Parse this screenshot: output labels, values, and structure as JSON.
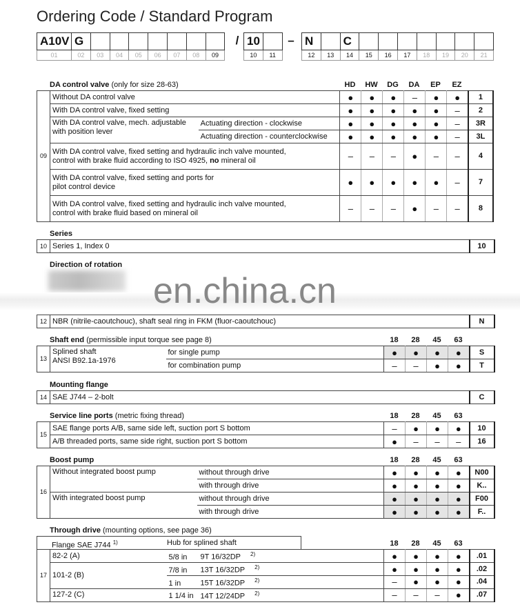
{
  "page_title": "Ordering Code / Standard Program",
  "code_strip": {
    "cells": [
      {
        "value": "A10V",
        "num": "01",
        "active": false
      },
      {
        "value": "G",
        "num": "02",
        "active": false
      },
      {
        "value": "",
        "num": "03",
        "active": false
      },
      {
        "value": "",
        "num": "04",
        "active": false
      },
      {
        "value": "",
        "num": "05",
        "active": false
      },
      {
        "value": "",
        "num": "06",
        "active": false
      },
      {
        "value": "",
        "num": "07",
        "active": false
      },
      {
        "value": "",
        "num": "08",
        "active": false
      },
      {
        "value": "",
        "num": "09",
        "active": true
      },
      {
        "value": "10",
        "num": "10",
        "active": true
      },
      {
        "value": "",
        "num": "11",
        "active": true
      },
      {
        "value": "N",
        "num": "12",
        "active": true
      },
      {
        "value": "",
        "num": "13",
        "active": true
      },
      {
        "value": "C",
        "num": "14",
        "active": true
      },
      {
        "value": "",
        "num": "15",
        "active": true
      },
      {
        "value": "",
        "num": "16",
        "active": true
      },
      {
        "value": "",
        "num": "17",
        "active": true
      },
      {
        "value": "",
        "num": "18",
        "active": false
      },
      {
        "value": "",
        "num": "19",
        "active": false
      },
      {
        "value": "",
        "num": "20",
        "active": false
      },
      {
        "value": "",
        "num": "21",
        "active": false
      }
    ],
    "separators": [
      "/",
      "–"
    ]
  },
  "marks": {
    "available": "●",
    "unavailable": "–"
  },
  "watermark": "en.china.cn",
  "sections": [
    {
      "id": "da",
      "title": "DA control valve",
      "note": "(only for size 28-63)",
      "number": "09",
      "columns": [
        "HD",
        "HW",
        "DG",
        "DA",
        "EP",
        "EZ"
      ],
      "groups": [
        {
          "desc": "Without DA control valve",
          "rows": [
            {
              "marks": [
                "●",
                "●",
                "●",
                "–",
                "●",
                "●"
              ],
              "code": "1"
            }
          ]
        },
        {
          "desc": "With DA control valve, fixed setting",
          "rows": [
            {
              "marks": [
                "●",
                "●",
                "●",
                "●",
                "●",
                "–"
              ],
              "code": "2"
            }
          ]
        },
        {
          "desc": "With DA control valve, mech. adjustable\nwith position lever",
          "rows": [
            {
              "sub": "Actuating direction - clockwise",
              "marks": [
                "●",
                "●",
                "●",
                "●",
                "●",
                "–"
              ],
              "code": "3R"
            },
            {
              "sub": "Actuating direction - counterclockwise",
              "marks": [
                "●",
                "●",
                "●",
                "●",
                "●",
                "–"
              ],
              "code": "3L"
            }
          ]
        },
        {
          "desc_rich": [
            {
              "text": "With DA control valve, fixed setting and hydraulic inch valve mounted,\ncontrol with brake fluid according to ISO 4925, ",
              "bold": false
            },
            {
              "text": "no",
              "bold": true
            },
            {
              "text": " mineral oil",
              "bold": false
            }
          ],
          "rows": [
            {
              "marks": [
                "–",
                "–",
                "–",
                "●",
                "–",
                "–"
              ],
              "code": "4"
            }
          ]
        },
        {
          "desc": "With DA control valve, fixed setting and ports for\npilot control device",
          "rows": [
            {
              "marks": [
                "●",
                "●",
                "●",
                "●",
                "●",
                "–"
              ],
              "code": "7"
            }
          ]
        },
        {
          "desc": "With DA control valve, fixed setting and hydraulic inch valve mounted,\ncontrol with brake fluid based on mineral oil",
          "rows": [
            {
              "marks": [
                "–",
                "–",
                "–",
                "●",
                "–",
                "–"
              ],
              "code": "8"
            }
          ]
        }
      ]
    },
    {
      "id": "series",
      "title": "Series",
      "note": "",
      "number": "10",
      "columns": [],
      "groups": [
        {
          "desc": "Series 1, Index 0",
          "rows": [
            {
              "marks": [],
              "code": "10"
            }
          ]
        }
      ]
    },
    {
      "id": "rotation",
      "title": "Direction of rotation",
      "note": "",
      "blurred": true
    },
    {
      "id": "seals",
      "title": "",
      "note": "",
      "number": "12",
      "columns": [],
      "groups": [
        {
          "desc": "NBR (nitrile-caoutchouc), shaft seal ring in FKM (fluor-caoutchouc)",
          "rows": [
            {
              "marks": [],
              "code": "N"
            }
          ]
        }
      ]
    },
    {
      "id": "shaft",
      "title": "Shaft end",
      "note": "(permissible input torque see page 8)",
      "number": "13",
      "columns": [
        "18",
        "28",
        "45",
        "63"
      ],
      "groups": [
        {
          "desc": "Splined shaft\nANSI B92.1a-1976",
          "rows": [
            {
              "sub": "for single pump",
              "marks": [
                "●",
                "●",
                "●",
                "●"
              ],
              "code": "S",
              "shaded": true
            },
            {
              "sub": "for combination pump",
              "marks": [
                "–",
                "–",
                "●",
                "●"
              ],
              "code": "T"
            }
          ]
        }
      ]
    },
    {
      "id": "flange",
      "title": "Mounting flange",
      "note": "",
      "number": "14",
      "columns": [],
      "groups": [
        {
          "desc": "SAE J744 – 2-bolt",
          "rows": [
            {
              "marks": [],
              "code": "C"
            }
          ]
        }
      ]
    },
    {
      "id": "ports",
      "title": "Service line ports",
      "note": "(metric fixing thread)",
      "number": "15",
      "columns": [
        "18",
        "28",
        "45",
        "63"
      ],
      "groups": [
        {
          "desc": "SAE flange ports A/B, same side left, suction port S bottom",
          "rows": [
            {
              "marks": [
                "–",
                "●",
                "●",
                "●"
              ],
              "code": "10"
            }
          ]
        },
        {
          "desc": "A/B threaded ports, same side right, suction port S bottom",
          "rows": [
            {
              "marks": [
                "●",
                "–",
                "–",
                "–"
              ],
              "code": "16"
            }
          ]
        }
      ]
    },
    {
      "id": "boost",
      "title": "Boost pump",
      "note": "",
      "number": "16",
      "columns": [
        "18",
        "28",
        "45",
        "63"
      ],
      "groups": [
        {
          "desc": "Without integrated boost pump",
          "rows": [
            {
              "sub": "without through drive",
              "marks": [
                "●",
                "●",
                "●",
                "●"
              ],
              "code": "N00"
            },
            {
              "sub": "with through drive",
              "marks": [
                "●",
                "●",
                "●",
                "●"
              ],
              "code": "K.."
            }
          ]
        },
        {
          "desc": "With integrated boost pump",
          "rows": [
            {
              "sub": "without through drive",
              "marks": [
                "●",
                "●",
                "●",
                "●"
              ],
              "code": "F00",
              "shaded": true
            },
            {
              "sub": "with through drive",
              "marks": [
                "●",
                "●",
                "●",
                "●"
              ],
              "code": "F..",
              "shaded": true
            }
          ]
        }
      ]
    },
    {
      "id": "through",
      "title": "Through drive",
      "note": "(mounting options, see page 36)",
      "number": "17",
      "columns": [
        "18",
        "28",
        "45",
        "63"
      ],
      "header": {
        "flange": "Flange SAE J744",
        "flange_note": "1)",
        "hub": "Hub for splined shaft"
      },
      "groups": [
        {
          "desc": "82-2 (A)",
          "rows": [
            {
              "size": "5/8 in",
              "spline": "9T 16/32DP",
              "fn": "2)",
              "marks": [
                "●",
                "●",
                "●",
                "●"
              ],
              "code": ".01"
            }
          ]
        },
        {
          "desc": "101-2 (B)",
          "rows": [
            {
              "size": "7/8 in",
              "spline": "13T 16/32DP",
              "fn": "2)",
              "marks": [
                "●",
                "●",
                "●",
                "●"
              ],
              "code": ".02"
            },
            {
              "size": "1 in",
              "spline": "15T 16/32DP",
              "fn": "2)",
              "marks": [
                "–",
                "●",
                "●",
                "●"
              ],
              "code": ".04"
            }
          ]
        },
        {
          "desc": "127-2 (C)",
          "rows": [
            {
              "size": "1 1/4 in",
              "spline": "14T 12/24DP",
              "fn": "2)",
              "marks": [
                "–",
                "–",
                "–",
                "●"
              ],
              "code": ".07"
            }
          ]
        }
      ]
    }
  ]
}
